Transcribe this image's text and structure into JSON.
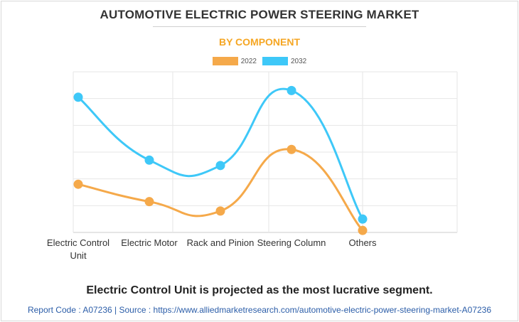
{
  "chart_data": {
    "type": "line",
    "title": "AUTOMOTIVE ELECTRIC POWER STEERING MARKET",
    "subtitle": "BY COMPONENT",
    "categories": [
      "Electric Control Unit",
      "Electric Motor",
      "Rack and Pinion",
      "Steering Column",
      "Others"
    ],
    "category_lines": [
      [
        "Electric Control",
        "Unit"
      ],
      [
        "Electric Motor"
      ],
      [
        "Rack and Pinion"
      ],
      [
        "Steering Column"
      ],
      [
        "Others"
      ]
    ],
    "series": [
      {
        "name": "2022",
        "color": "#f5a94a",
        "values": [
          36,
          23,
          16,
          62,
          1.5
        ]
      },
      {
        "name": "2032",
        "color": "#3ec8f8",
        "values": [
          101,
          54,
          50,
          106,
          10
        ]
      }
    ],
    "ylim": [
      0,
      120
    ],
    "grid": true,
    "curve": "smooth",
    "legend_position": "top-center",
    "xlabel": "",
    "ylabel": ""
  },
  "footer": {
    "headline": "Electric Control Unit is projected as the most lucrative segment.",
    "source": "Report Code : A07236  |  Source : https://www.alliedmarketresearch.com/automotive-electric-power-steering-market-A07236"
  }
}
